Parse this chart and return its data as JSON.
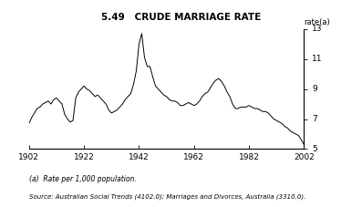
{
  "title": "5.49   CRUDE MARRIAGE RATE",
  "ylabel": "rate(a)",
  "xlim": [
    1902,
    2002
  ],
  "ylim": [
    5,
    13
  ],
  "yticks": [
    5,
    7,
    9,
    11,
    13
  ],
  "xticks": [
    1902,
    1922,
    1942,
    1962,
    1982,
    2002
  ],
  "footnote1": "(a)  Rate per 1,000 population.",
  "footnote2": "Source: Australian Social Trends (4102.0); Marriages and Divorces, Australia (3310.0).",
  "line_color": "#000000",
  "bg_color": "#ffffff",
  "years": [
    1902,
    1903,
    1904,
    1905,
    1906,
    1907,
    1908,
    1909,
    1910,
    1911,
    1912,
    1913,
    1914,
    1915,
    1916,
    1917,
    1918,
    1919,
    1920,
    1921,
    1922,
    1923,
    1924,
    1925,
    1926,
    1927,
    1928,
    1929,
    1930,
    1931,
    1932,
    1933,
    1934,
    1935,
    1936,
    1937,
    1938,
    1939,
    1940,
    1941,
    1942,
    1943,
    1944,
    1945,
    1946,
    1947,
    1948,
    1949,
    1950,
    1951,
    1952,
    1953,
    1954,
    1955,
    1956,
    1957,
    1958,
    1959,
    1960,
    1961,
    1962,
    1963,
    1964,
    1965,
    1966,
    1967,
    1968,
    1969,
    1970,
    1971,
    1972,
    1973,
    1974,
    1975,
    1976,
    1977,
    1978,
    1979,
    1980,
    1981,
    1982,
    1983,
    1984,
    1985,
    1986,
    1987,
    1988,
    1989,
    1990,
    1991,
    1992,
    1993,
    1994,
    1995,
    1996,
    1997,
    1998,
    1999,
    2000,
    2001,
    2002
  ],
  "values": [
    6.7,
    7.1,
    7.4,
    7.7,
    7.8,
    8.0,
    8.1,
    8.2,
    8.0,
    8.3,
    8.4,
    8.2,
    8.0,
    7.3,
    7.0,
    6.8,
    6.9,
    8.4,
    8.8,
    9.0,
    9.2,
    9.0,
    8.9,
    8.7,
    8.5,
    8.6,
    8.4,
    8.2,
    8.0,
    7.6,
    7.4,
    7.5,
    7.6,
    7.8,
    8.0,
    8.3,
    8.5,
    8.7,
    9.3,
    10.2,
    12.0,
    12.7,
    11.1,
    10.5,
    10.5,
    9.8,
    9.2,
    9.0,
    8.8,
    8.6,
    8.5,
    8.3,
    8.2,
    8.2,
    8.1,
    7.9,
    7.9,
    8.0,
    8.1,
    8.0,
    7.9,
    8.0,
    8.2,
    8.5,
    8.7,
    8.8,
    9.1,
    9.4,
    9.6,
    9.7,
    9.5,
    9.2,
    8.8,
    8.5,
    8.0,
    7.7,
    7.7,
    7.8,
    7.8,
    7.8,
    7.9,
    7.8,
    7.7,
    7.7,
    7.6,
    7.5,
    7.5,
    7.4,
    7.2,
    7.0,
    6.9,
    6.8,
    6.7,
    6.5,
    6.4,
    6.2,
    6.1,
    6.0,
    5.9,
    5.6,
    5.3
  ]
}
